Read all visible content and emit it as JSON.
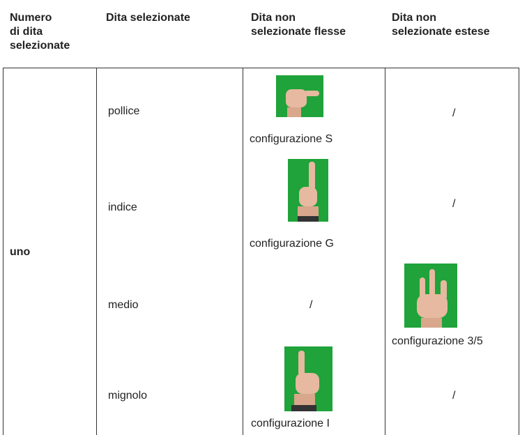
{
  "table": {
    "headers": [
      [
        "Numero",
        "di dita",
        "selezionate"
      ],
      [
        "Dita selezionate"
      ],
      [
        "Dita non",
        "selezionate flesse"
      ],
      [
        "Dita non",
        "selezionate estese"
      ]
    ],
    "group": "uno",
    "rows": [
      {
        "selected": "pollice",
        "flexed": "configurazione S",
        "extended": "/"
      },
      {
        "selected": "indice",
        "flexed": "configurazione G",
        "extended": "/"
      },
      {
        "selected": "medio",
        "flexed": "/",
        "extended": "configurazione 3/5"
      },
      {
        "selected": "mignolo",
        "flexed": "configurazione I",
        "extended": "/"
      }
    ]
  }
}
